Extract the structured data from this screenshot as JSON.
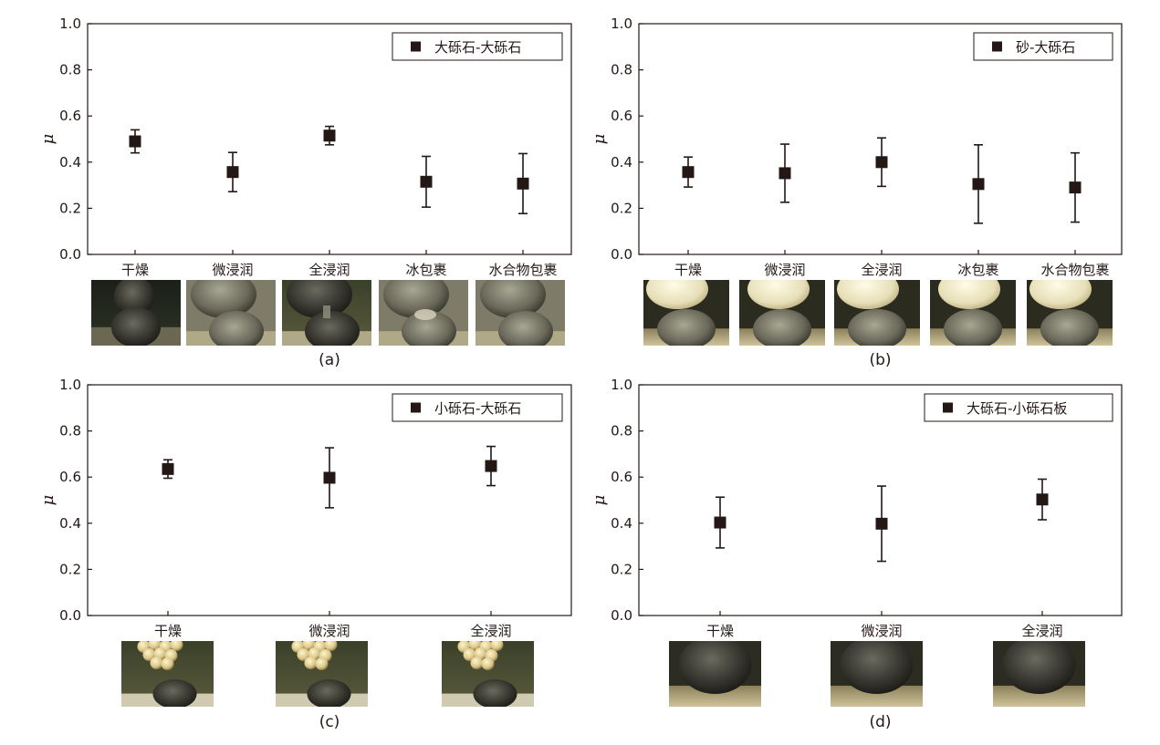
{
  "figure": {
    "panels": [
      {
        "label": "(a)",
        "legend": "大砾石-大砾石"
      },
      {
        "label": "(b)",
        "legend": "砂-大砾石"
      },
      {
        "label": "(c)",
        "legend": "小砾石-大砾石"
      },
      {
        "label": "(d)",
        "legend": "大砾石-小砾石板"
      }
    ]
  },
  "colors": {
    "marker": "#231815",
    "axis": "#231815"
  },
  "chart_data": [
    {
      "type": "scatter",
      "panel": "(a)",
      "legend_position": "top-right",
      "ylabel": "μ",
      "ylim": [
        0.0,
        1.0
      ],
      "yticks": [
        "0.0",
        "0.2",
        "0.4",
        "0.6",
        "0.8",
        "1.0"
      ],
      "categories": [
        "干燥",
        "微浸润",
        "全浸润",
        "冰包裹",
        "水合物包裹"
      ],
      "series": [
        {
          "name": "大砾石-大砾石",
          "values": [
            0.49,
            0.357,
            0.515,
            0.315,
            0.307
          ],
          "err": [
            0.05,
            0.085,
            0.04,
            0.11,
            0.13
          ]
        }
      ],
      "photos": [
        "dry",
        "slight",
        "full",
        "ice",
        "hydrate"
      ]
    },
    {
      "type": "scatter",
      "panel": "(b)",
      "legend_position": "top-right",
      "ylabel": "μ",
      "ylim": [
        0.0,
        1.0
      ],
      "yticks": [
        "0.0",
        "0.2",
        "0.4",
        "0.6",
        "0.8",
        "1.0"
      ],
      "categories": [
        "干燥",
        "微浸润",
        "全浸润",
        "冰包裹",
        "水合物包裹"
      ],
      "series": [
        {
          "name": "砂-大砾石",
          "values": [
            0.357,
            0.352,
            0.4,
            0.305,
            0.29
          ],
          "err": [
            0.065,
            0.126,
            0.105,
            0.17,
            0.15
          ]
        }
      ],
      "photos": [
        "sand",
        "sand",
        "sand",
        "sand",
        "sand"
      ]
    },
    {
      "type": "scatter",
      "panel": "(c)",
      "legend_position": "top-right",
      "ylabel": "μ",
      "ylim": [
        0.0,
        1.0
      ],
      "yticks": [
        "0.0",
        "0.2",
        "0.4",
        "0.6",
        "0.8",
        "1.0"
      ],
      "categories": [
        "干燥",
        "微浸润",
        "全浸润"
      ],
      "series": [
        {
          "name": "小砾石-大砾石",
          "values": [
            0.635,
            0.597,
            0.648
          ],
          "err": [
            0.04,
            0.13,
            0.085
          ]
        }
      ],
      "photos": [
        "cluster",
        "cluster",
        "cluster"
      ]
    },
    {
      "type": "scatter",
      "panel": "(d)",
      "legend_position": "top-right",
      "ylabel": "μ",
      "ylim": [
        0.0,
        1.0
      ],
      "yticks": [
        "0.0",
        "0.2",
        "0.4",
        "0.6",
        "0.8",
        "1.0"
      ],
      "categories": [
        "干燥",
        "微浸润",
        "全浸润"
      ],
      "series": [
        {
          "name": "大砾石-小砾石板",
          "values": [
            0.403,
            0.398,
            0.503
          ],
          "err": [
            0.11,
            0.163,
            0.088
          ]
        }
      ],
      "photos": [
        "board",
        "board",
        "board"
      ]
    }
  ]
}
